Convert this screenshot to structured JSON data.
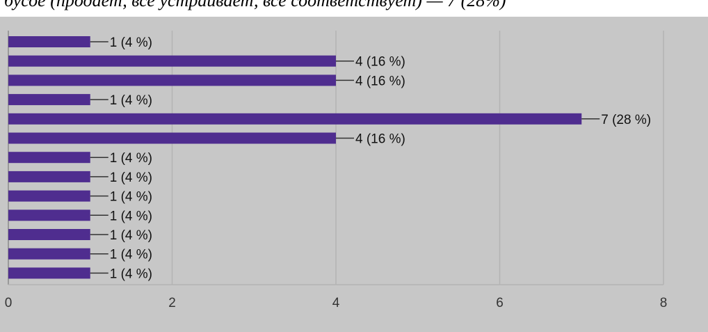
{
  "header": {
    "text": "бусое (продает, все устраивает, все соответствует) — 7 (28%)"
  },
  "chart_data": {
    "type": "bar",
    "orientation": "horizontal",
    "values": [
      1,
      4,
      4,
      1,
      7,
      4,
      1,
      1,
      1,
      1,
      1,
      1,
      1
    ],
    "data_labels": [
      "1 (4 %)",
      "4 (16 %)",
      "4 (16 %)",
      "1 (4 %)",
      "7 (28 %)",
      "4 (16 %)",
      "1 (4 %)",
      "1 (4 %)",
      "1 (4 %)",
      "1 (4 %)",
      "1 (4 %)",
      "1 (4 %)",
      "1 (4 %)"
    ],
    "x_ticks": [
      0,
      2,
      4,
      6,
      8
    ],
    "xlim": [
      0,
      8
    ],
    "grid": true,
    "title": "",
    "xlabel": "",
    "ylabel": "",
    "colors": {
      "bar": "#4f2d8f",
      "background": "#c7c7c7"
    }
  }
}
